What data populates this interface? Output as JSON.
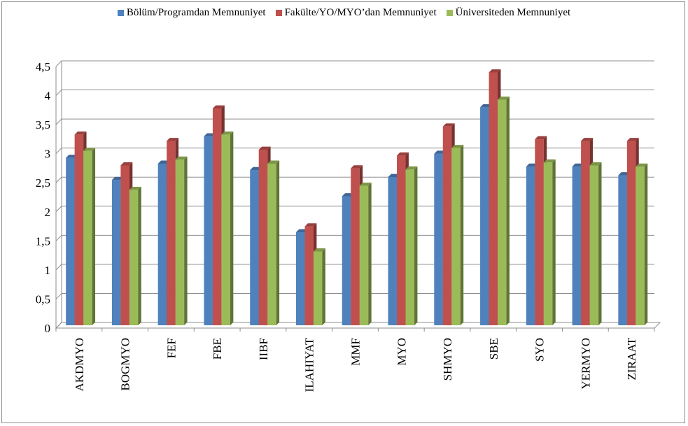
{
  "chart_data": {
    "type": "bar",
    "categories": [
      "AKDMYO",
      "BOGMYO",
      "FEF",
      "FBE",
      "IIBF",
      "ILAHIYAT",
      "MMF",
      "MYO",
      "SHMYO",
      "SBE",
      "SYO",
      "YERMYO",
      "ZIRAAT"
    ],
    "series": [
      {
        "name": "Bölüm/Programdan Memnuniyet",
        "color": "#4f81bd",
        "values": [
          2.88,
          2.5,
          2.78,
          3.25,
          2.67,
          1.6,
          2.22,
          2.55,
          2.95,
          3.75,
          2.73,
          2.73,
          2.58
        ]
      },
      {
        "name": "Fakülte/YO/MYO’dan Memnuniyet",
        "color": "#c0504d",
        "values": [
          3.28,
          2.75,
          3.17,
          3.73,
          3.02,
          1.7,
          2.7,
          2.92,
          3.42,
          4.35,
          3.2,
          3.17,
          3.17
        ]
      },
      {
        "name": "Üniversiteden Memnuniyet",
        "color": "#9bbb59",
        "values": [
          3.0,
          2.33,
          2.85,
          3.28,
          2.78,
          1.27,
          2.4,
          2.68,
          3.05,
          3.88,
          2.8,
          2.75,
          2.73
        ]
      }
    ],
    "yticks": [
      "0",
      "0,5",
      "1",
      "1,5",
      "2",
      "2,5",
      "3",
      "3,5",
      "4",
      "4,5"
    ],
    "ylim": [
      0,
      4.5
    ],
    "grid": true,
    "legend": "top"
  }
}
